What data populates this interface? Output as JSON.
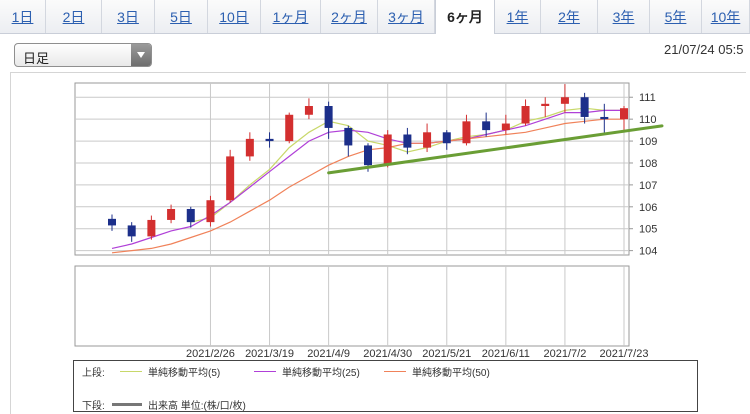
{
  "tabs": [
    {
      "label": "1日",
      "active": false
    },
    {
      "label": "2日",
      "active": false
    },
    {
      "label": "3日",
      "active": false
    },
    {
      "label": "5日",
      "active": false
    },
    {
      "label": "10日",
      "active": false
    },
    {
      "label": "1ヶ月",
      "active": false
    },
    {
      "label": "2ヶ月",
      "active": false
    },
    {
      "label": "3ヶ月",
      "active": false
    },
    {
      "label": "6ヶ月",
      "active": true
    },
    {
      "label": "1年",
      "active": false
    },
    {
      "label": "2年",
      "active": false
    },
    {
      "label": "3年",
      "active": false
    },
    {
      "label": "5年",
      "active": false
    },
    {
      "label": "10年",
      "active": false
    }
  ],
  "period_select": {
    "value": "日足"
  },
  "timestamp": "21/07/24 05:5",
  "legend": {
    "upper_label": "上段:",
    "lower_label": "下段:",
    "ma5": "単純移動平均(5)",
    "ma25": "単純移動平均(25)",
    "ma50": "単純移動平均(50)",
    "volume": "出来高 単位:(株/口/枚)"
  },
  "colors": {
    "up": "#d32f2f",
    "down": "#1c2f8a",
    "ma5": "#c8d86a",
    "ma25": "#b040d8",
    "ma50": "#f0825a",
    "trendline": "#6a9e35",
    "volume": "#777777",
    "grid": "#c9c9c9",
    "active_tab_text": "#222222",
    "tab_link": "#2c5fb0"
  },
  "chart_data": {
    "type": "candlestick",
    "y_ticks": [
      104,
      105,
      106,
      107,
      108,
      109,
      110,
      111
    ],
    "ylim": [
      103.8,
      111.65
    ],
    "x_tick_labels": [
      "2021/2/26",
      "2021/3/19",
      "2021/4/9",
      "2021/4/30",
      "2021/5/21",
      "2021/6/11",
      "2021/7/2",
      "2021/7/23"
    ],
    "x_range": [
      "2021/1/22",
      "2021/7/23"
    ],
    "grid": true,
    "ohlc_series": [
      {
        "date": "2021-01-22",
        "open": 105.45,
        "high": 105.65,
        "low": 104.9,
        "close": 105.15
      },
      {
        "date": "2021-01-29",
        "open": 105.15,
        "high": 105.3,
        "low": 104.4,
        "close": 104.65
      },
      {
        "date": "2021-02-05",
        "open": 104.65,
        "high": 105.6,
        "low": 104.5,
        "close": 105.4
      },
      {
        "date": "2021-02-12",
        "open": 105.4,
        "high": 106.1,
        "low": 105.25,
        "close": 105.9
      },
      {
        "date": "2021-02-19",
        "open": 105.9,
        "high": 106.0,
        "low": 105.05,
        "close": 105.3
      },
      {
        "date": "2021-02-26",
        "open": 105.3,
        "high": 106.5,
        "low": 105.1,
        "close": 106.3
      },
      {
        "date": "2021-03-05",
        "open": 106.3,
        "high": 108.6,
        "low": 106.2,
        "close": 108.3
      },
      {
        "date": "2021-03-12",
        "open": 108.3,
        "high": 109.4,
        "low": 108.1,
        "close": 109.1
      },
      {
        "date": "2021-03-19",
        "open": 109.1,
        "high": 109.4,
        "low": 108.7,
        "close": 109.0
      },
      {
        "date": "2021-03-26",
        "open": 109.0,
        "high": 110.3,
        "low": 108.9,
        "close": 110.2
      },
      {
        "date": "2021-04-02",
        "open": 110.2,
        "high": 110.95,
        "low": 110.0,
        "close": 110.6
      },
      {
        "date": "2021-04-09",
        "open": 110.6,
        "high": 110.8,
        "low": 109.1,
        "close": 109.6
      },
      {
        "date": "2021-04-16",
        "open": 109.6,
        "high": 109.7,
        "low": 108.3,
        "close": 108.8
      },
      {
        "date": "2021-04-23",
        "open": 108.8,
        "high": 108.9,
        "low": 107.6,
        "close": 107.9
      },
      {
        "date": "2021-04-30",
        "open": 107.9,
        "high": 109.5,
        "low": 107.8,
        "close": 109.3
      },
      {
        "date": "2021-05-07",
        "open": 109.3,
        "high": 109.6,
        "low": 108.4,
        "close": 108.7
      },
      {
        "date": "2021-05-14",
        "open": 108.7,
        "high": 109.8,
        "low": 108.5,
        "close": 109.4
      },
      {
        "date": "2021-05-21",
        "open": 109.4,
        "high": 109.5,
        "low": 108.6,
        "close": 108.9
      },
      {
        "date": "2021-05-28",
        "open": 108.9,
        "high": 110.2,
        "low": 108.8,
        "close": 109.9
      },
      {
        "date": "2021-06-04",
        "open": 109.9,
        "high": 110.3,
        "low": 109.2,
        "close": 109.5
      },
      {
        "date": "2021-06-11",
        "open": 109.5,
        "high": 110.2,
        "low": 109.3,
        "close": 109.8
      },
      {
        "date": "2021-06-18",
        "open": 109.8,
        "high": 110.9,
        "low": 109.7,
        "close": 110.6
      },
      {
        "date": "2021-06-25",
        "open": 110.6,
        "high": 111.0,
        "low": 110.1,
        "close": 110.7
      },
      {
        "date": "2021-07-02",
        "open": 110.7,
        "high": 111.6,
        "low": 110.3,
        "close": 111.0
      },
      {
        "date": "2021-07-09",
        "open": 111.0,
        "high": 111.2,
        "low": 109.8,
        "close": 110.1
      },
      {
        "date": "2021-07-16",
        "open": 110.1,
        "high": 110.7,
        "low": 109.3,
        "close": 110.0
      },
      {
        "date": "2021-07-23",
        "open": 110.0,
        "high": 110.6,
        "low": 109.5,
        "close": 110.5
      }
    ],
    "series": [
      {
        "name": "単純移動平均(5)",
        "values": [
          null,
          null,
          null,
          null,
          105.3,
          105.5,
          106.2,
          107.0,
          107.7,
          108.7,
          109.4,
          109.9,
          109.7,
          109.0,
          108.8,
          108.5,
          108.7,
          109.0,
          109.2,
          109.3,
          109.5,
          109.9,
          110.1,
          110.4,
          110.5,
          110.4,
          110.4
        ]
      },
      {
        "name": "単純移動平均(25)",
        "values": [
          104.1,
          104.3,
          104.6,
          104.9,
          105.1,
          105.6,
          106.2,
          106.9,
          107.6,
          108.3,
          109.0,
          109.4,
          109.5,
          109.4,
          109.1,
          108.9,
          108.9,
          109.0,
          109.1,
          109.3,
          109.5,
          109.7,
          110.0,
          110.3,
          110.3,
          110.4,
          110.4
        ]
      },
      {
        "name": "単純移動平均(50)",
        "values": [
          103.9,
          104.0,
          104.1,
          104.3,
          104.6,
          104.9,
          105.3,
          105.8,
          106.3,
          106.9,
          107.4,
          107.9,
          108.3,
          108.6,
          108.7,
          108.9,
          108.9,
          109.0,
          109.1,
          109.2,
          109.3,
          109.4,
          109.6,
          109.8,
          109.9,
          110.0,
          110.0
        ]
      }
    ],
    "trendline": {
      "from": {
        "date": "2021-04-09",
        "value": 107.55
      },
      "to": {
        "date": "2021-07-23",
        "value": 109.45
      },
      "extends_right": true
    }
  }
}
